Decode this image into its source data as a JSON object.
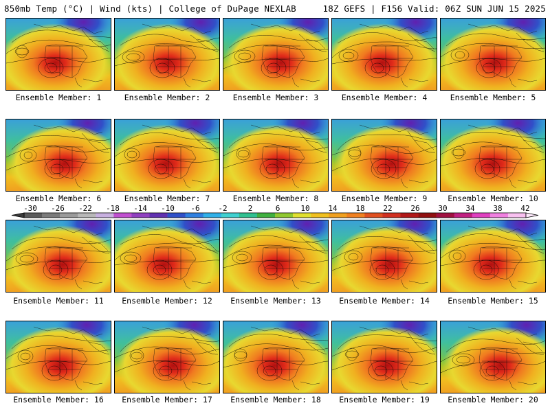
{
  "header": {
    "left": "850mb Temp (°C) | Wind (kts) | College of DuPage NEXLAB",
    "right": "18Z GEFS | F156 Valid: 06Z SUN JUN 15 2025"
  },
  "members": [
    "Ensemble Member: 1",
    "Ensemble Member: 2",
    "Ensemble Member: 3",
    "Ensemble Member: 4",
    "Ensemble Member: 5",
    "Ensemble Member: 6",
    "Ensemble Member: 7",
    "Ensemble Member: 8",
    "Ensemble Member: 9",
    "Ensemble Member: 10",
    "Ensemble Member: 11",
    "Ensemble Member: 12",
    "Ensemble Member: 13",
    "Ensemble Member: 14",
    "Ensemble Member: 15",
    "Ensemble Member: 16",
    "Ensemble Member: 17",
    "Ensemble Member: 18",
    "Ensemble Member: 19",
    "Ensemble Member: 20"
  ],
  "colorbar": {
    "labels": [
      "-30",
      "-26",
      "-22",
      "-18",
      "-14",
      "-10",
      "-6",
      "-2",
      "2",
      "6",
      "10",
      "14",
      "18",
      "22",
      "26",
      "30",
      "34",
      "38",
      "42"
    ],
    "colors": [
      "#5a5a5a",
      "#7a7a7a",
      "#9a9a9a",
      "#b8b8b8",
      "#c8b0e0",
      "#c050d0",
      "#9040c0",
      "#6030b0",
      "#3050c8",
      "#2f80e0",
      "#30b0e8",
      "#40d0d0",
      "#30c090",
      "#40b040",
      "#90c830",
      "#e0e030",
      "#f0c020",
      "#f0a020",
      "#f08020",
      "#e05020",
      "#d03020",
      "#b01818",
      "#901010",
      "#a01040",
      "#c02080",
      "#e040c0",
      "#f080e0",
      "#f8c0f0"
    ]
  }
}
